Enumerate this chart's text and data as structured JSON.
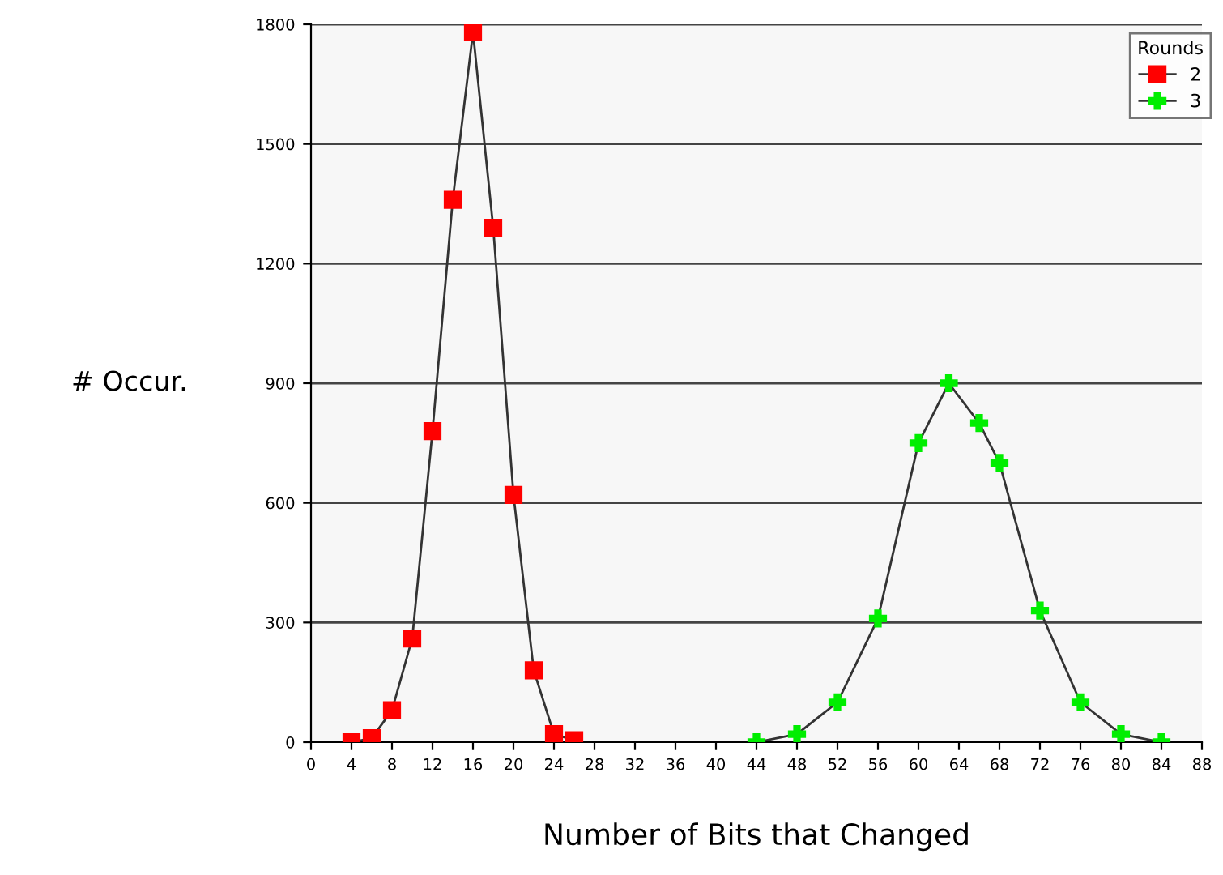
{
  "chart_data": {
    "type": "line",
    "xlabel": "Number of Bits that Changed",
    "ylabel": "# Occur.",
    "legend_title": "Rounds",
    "xlim": [
      0,
      88
    ],
    "xticks": [
      0,
      4,
      8,
      12,
      16,
      20,
      24,
      28,
      32,
      36,
      40,
      44,
      48,
      52,
      56,
      60,
      64,
      68,
      72,
      76,
      80,
      84,
      88
    ],
    "ylim": [
      0,
      1800
    ],
    "yticks": [
      0,
      300,
      600,
      900,
      1200,
      1500,
      1800
    ],
    "grid": "y",
    "legend": "top right",
    "series": [
      {
        "name": "2",
        "color": "#ff0000",
        "marker": "square",
        "x": [
          4,
          6,
          8,
          10,
          12,
          14,
          16,
          18,
          20,
          22,
          24,
          26
        ],
        "values": [
          0,
          10,
          80,
          260,
          780,
          1360,
          1780,
          1290,
          620,
          180,
          20,
          5
        ]
      },
      {
        "name": "3",
        "color": "#00ee00",
        "marker": "cross",
        "x": [
          44,
          48,
          52,
          56,
          60,
          63,
          66,
          68,
          72,
          76,
          80,
          84
        ],
        "values": [
          0,
          20,
          100,
          310,
          750,
          900,
          800,
          700,
          330,
          100,
          20,
          0
        ]
      }
    ]
  }
}
